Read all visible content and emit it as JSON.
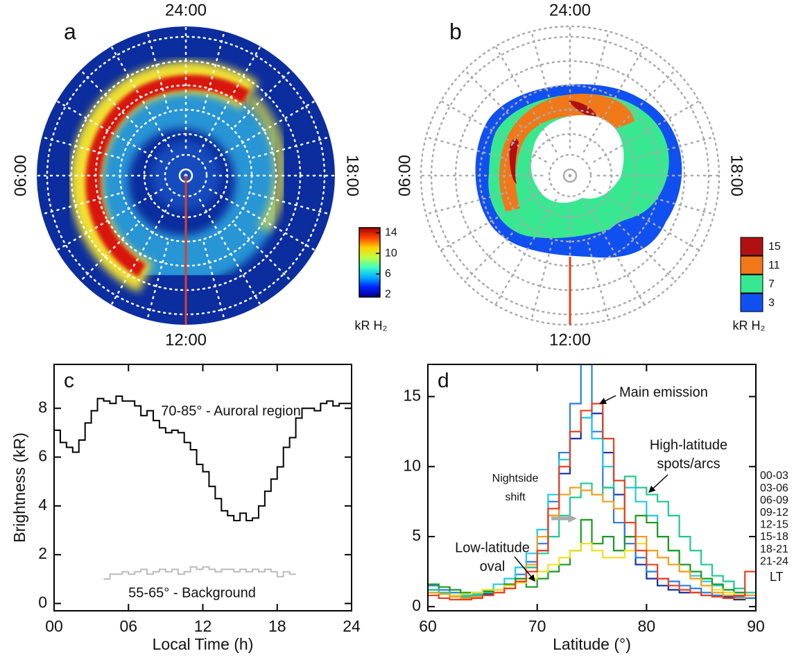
{
  "chart_data": [
    {
      "type": "polar-image",
      "panel": "a",
      "hour_labels": [
        "24:00",
        "06:00",
        "12:00",
        "18:00"
      ],
      "colorbar": {
        "label": "kR H₂",
        "lim": [
          1.5,
          15
        ],
        "ticks": [
          2,
          6,
          10,
          14
        ],
        "colors": [
          "#00008f",
          "#0020ff",
          "#00b0ff",
          "#40ffc0",
          "#c0ff40",
          "#ffd000",
          "#ff4000",
          "#a00000"
        ]
      }
    },
    {
      "type": "polar-levels",
      "panel": "b",
      "hour_labels": [
        "24:00",
        "06:00",
        "12:00",
        "18:00"
      ],
      "levels": {
        "label": "kR H₂",
        "values": [
          15,
          11,
          7,
          3
        ],
        "colors": [
          "#b01010",
          "#f07818",
          "#38e890",
          "#1050f0"
        ]
      }
    },
    {
      "type": "step",
      "panel": "c",
      "xlabel": "Local Time (h)",
      "ylabel": "Brightness (kR)",
      "xlim": [
        0,
        24
      ],
      "ylim": [
        -0.3,
        9.8
      ],
      "xticks": [
        {
          "value": 0,
          "label": "00"
        },
        {
          "value": 6,
          "label": "06"
        },
        12,
        18,
        24
      ],
      "yticks": [
        0,
        2,
        4,
        6,
        8
      ],
      "x": [
        0,
        0.5,
        1,
        1.5,
        2,
        2.5,
        3,
        3.5,
        4,
        4.5,
        5,
        5.5,
        6,
        6.5,
        7,
        7.5,
        8,
        8.5,
        9,
        9.5,
        10,
        10.5,
        11,
        11.5,
        12,
        12.5,
        13,
        13.5,
        14,
        14.5,
        15,
        15.5,
        16,
        16.5,
        17,
        17.5,
        18,
        18.5,
        19,
        19.5,
        20,
        20.5,
        21,
        21.5,
        22,
        22.5,
        23,
        23.5
      ],
      "series": [
        {
          "name": "70-85° - Auroral region",
          "color": "#000000",
          "values": [
            7.1,
            6.6,
            6.4,
            6.2,
            6.7,
            7.4,
            7.9,
            8.4,
            8.3,
            8.2,
            8.5,
            8.3,
            8.3,
            8.1,
            7.7,
            7.9,
            7.5,
            7.2,
            7.0,
            7.1,
            7.0,
            6.6,
            6.3,
            5.7,
            5.4,
            4.8,
            4.3,
            3.8,
            3.6,
            3.4,
            3.7,
            3.4,
            3.5,
            4.0,
            4.6,
            5.1,
            5.6,
            6.4,
            6.8,
            7.6,
            8.0,
            8.0,
            7.9,
            8.2,
            8.3,
            8.1,
            8.2,
            8.2
          ]
        },
        {
          "name": "55-65° - Background",
          "color": "#bbbbbb",
          "values": [
            null,
            null,
            null,
            null,
            null,
            null,
            null,
            null,
            1.0,
            1.2,
            1.2,
            1.3,
            1.2,
            1.3,
            1.4,
            1.2,
            1.3,
            1.4,
            1.3,
            1.4,
            1.2,
            1.3,
            1.5,
            1.4,
            1.5,
            1.4,
            1.3,
            1.4,
            1.4,
            1.3,
            1.4,
            1.3,
            1.4,
            1.3,
            1.4,
            1.3,
            1.1,
            1.3,
            1.2,
            null,
            null,
            null,
            null,
            null,
            null,
            null,
            null,
            null
          ]
        }
      ]
    },
    {
      "type": "step",
      "panel": "d",
      "xlabel": "Latitude (°)",
      "legend_title": "LT",
      "xlim": [
        60,
        90
      ],
      "ylim": [
        -0.3,
        17.3
      ],
      "xticks": [
        60,
        70,
        80,
        90
      ],
      "yticks": [
        0,
        5,
        10,
        15
      ],
      "x": [
        60,
        61,
        62,
        63,
        64,
        65,
        66,
        67,
        68,
        69,
        70,
        71,
        72,
        73,
        74,
        75,
        76,
        77,
        78,
        79,
        80,
        81,
        82,
        83,
        84,
        85,
        86,
        87,
        88,
        89
      ],
      "annotations": [
        [
          "Main emission"
        ],
        [
          "High-latitude",
          "spots/arcs"
        ],
        [
          "Nightside",
          "shift"
        ],
        [
          "Low-latitude",
          "oval"
        ]
      ],
      "series": [
        {
          "name": "00-03",
          "color": "#1030a0",
          "values": [
            1.2,
            1.0,
            0.8,
            0.7,
            0.8,
            0.9,
            1.0,
            1.3,
            2.0,
            2.8,
            4.0,
            6.5,
            9.5,
            12.0,
            13.5,
            13.8,
            11.0,
            8.0,
            5.0,
            3.0,
            2.0,
            1.5,
            1.2,
            1.0,
            1.0,
            0.8,
            0.8,
            0.7,
            0.5,
            0.6
          ]
        },
        {
          "name": "03-06",
          "color": "#2a7de0",
          "values": [
            1.5,
            1.2,
            1.0,
            0.8,
            0.9,
            1.0,
            1.2,
            1.6,
            2.3,
            3.2,
            4.5,
            7.5,
            11.0,
            14.5,
            17.3,
            12.5,
            8.5,
            6.0,
            4.5,
            3.5,
            2.5,
            2.0,
            1.8,
            1.5,
            1.3,
            1.0,
            0.8,
            0.8,
            0.7,
            0.6
          ]
        },
        {
          "name": "06-09",
          "color": "#22c8e8",
          "values": [
            1.0,
            0.9,
            0.8,
            0.8,
            0.9,
            1.2,
            1.6,
            2.0,
            2.8,
            3.8,
            5.5,
            8.0,
            10.5,
            12.5,
            13.5,
            12.0,
            10.0,
            9.0,
            8.5,
            7.5,
            6.5,
            5.0,
            4.0,
            3.0,
            2.2,
            1.8,
            1.5,
            1.2,
            1.0,
            0.8
          ]
        },
        {
          "name": "09-12",
          "color": "#20c890",
          "values": [
            1.2,
            1.0,
            0.8,
            0.7,
            0.8,
            1.0,
            1.2,
            1.5,
            2.0,
            2.8,
            3.8,
            5.0,
            6.5,
            7.8,
            8.8,
            8.0,
            8.5,
            9.0,
            9.3,
            8.5,
            8.0,
            7.5,
            6.5,
            5.0,
            4.0,
            3.0,
            2.2,
            1.8,
            1.3,
            1.0
          ]
        },
        {
          "name": "12-15",
          "color": "#1a9a20",
          "values": [
            1.6,
            1.4,
            1.2,
            1.0,
            1.0,
            1.1,
            1.2,
            1.6,
            2.0,
            1.4,
            2.0,
            2.5,
            3.0,
            4.0,
            6.2,
            4.5,
            5.0,
            4.0,
            5.0,
            6.5,
            6.0,
            5.0,
            4.0,
            3.0,
            2.5,
            2.0,
            1.6,
            1.2,
            1.0,
            0.8
          ]
        },
        {
          "name": "15-18",
          "color": "#f0e020",
          "values": [
            1.0,
            0.9,
            0.8,
            0.9,
            1.0,
            1.2,
            1.2,
            1.5,
            1.7,
            2.0,
            2.5,
            3.0,
            3.5,
            4.0,
            4.5,
            4.0,
            3.5,
            3.5,
            4.0,
            4.5,
            4.0,
            3.5,
            3.0,
            2.5,
            2.0,
            1.5,
            1.2,
            1.0,
            0.8,
            0.8
          ]
        },
        {
          "name": "18-21",
          "color": "#f0a020",
          "values": [
            1.0,
            0.9,
            0.7,
            0.6,
            0.7,
            0.8,
            1.0,
            1.3,
            1.8,
            3.0,
            5.0,
            6.5,
            8.0,
            8.5,
            8.3,
            8.0,
            7.5,
            7.0,
            6.0,
            5.0,
            4.0,
            3.5,
            3.0,
            2.5,
            2.0,
            1.5,
            1.0,
            0.8,
            0.6,
            0.8
          ]
        },
        {
          "name": "21-24",
          "color": "#e84020",
          "values": [
            0.8,
            0.6,
            0.5,
            0.5,
            0.6,
            0.8,
            1.0,
            1.3,
            1.8,
            2.5,
            4.0,
            7.0,
            10.0,
            12.5,
            14.0,
            14.5,
            12.0,
            9.0,
            6.0,
            4.0,
            3.0,
            2.0,
            1.5,
            1.2,
            1.0,
            0.8,
            0.7,
            0.6,
            0.8,
            2.5
          ]
        }
      ]
    }
  ]
}
